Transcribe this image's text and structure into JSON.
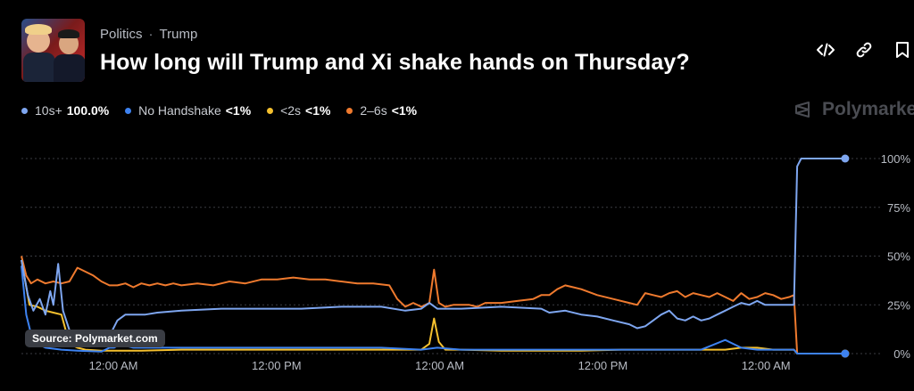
{
  "header": {
    "category": "Politics",
    "separator": "·",
    "subcategory": "Trump",
    "title": "How long will Trump and Xi shake hands on Thursday?"
  },
  "toolbar": {
    "embed_icon": "code-icon",
    "link_icon": "link-icon",
    "bookmark_icon": "bookmark-icon"
  },
  "brand": "Polymarket",
  "source_label": "Source: Polymarket.com",
  "legend": [
    {
      "label": "10s+",
      "value": "100.0%",
      "color": "#7ea6f0"
    },
    {
      "label": "No Handshake",
      "value": "<1%",
      "color": "#3d82f0"
    },
    {
      "label": "<2s",
      "value": "<1%",
      "color": "#f5c02e"
    },
    {
      "label": "2–6s",
      "value": "<1%",
      "color": "#ef7a2e"
    }
  ],
  "chart_data": {
    "type": "line",
    "x_range": [
      0,
      100
    ],
    "ylim": [
      0,
      100
    ],
    "y_ticks": [
      "100%",
      "75%",
      "50%",
      "25%",
      "0%"
    ],
    "y_tick_values": [
      100,
      75,
      50,
      25,
      0
    ],
    "x_ticks": [
      {
        "label": "12:00 AM",
        "x": 11.5
      },
      {
        "label": "12:00 PM",
        "x": 31.9
      },
      {
        "label": "12:00 AM",
        "x": 52.3
      },
      {
        "label": "12:00 PM",
        "x": 72.7
      },
      {
        "label": "12:00 AM",
        "x": 93.1
      }
    ],
    "grid": true,
    "series": [
      {
        "name": "10s+",
        "color": "#7ea6f0",
        "points": [
          [
            0,
            48
          ],
          [
            0.8,
            30
          ],
          [
            1.5,
            22
          ],
          [
            2.3,
            28
          ],
          [
            3,
            20
          ],
          [
            3.6,
            32
          ],
          [
            4,
            25
          ],
          [
            4.6,
            46
          ],
          [
            5.2,
            22
          ],
          [
            6,
            12
          ],
          [
            7.5,
            8
          ],
          [
            8.8,
            8
          ],
          [
            10,
            7
          ],
          [
            11,
            9
          ],
          [
            12,
            17
          ],
          [
            13,
            20
          ],
          [
            14,
            20
          ],
          [
            15.5,
            20
          ],
          [
            17,
            21
          ],
          [
            20,
            22
          ],
          [
            25,
            23
          ],
          [
            30,
            23
          ],
          [
            35,
            23
          ],
          [
            40,
            24
          ],
          [
            45,
            24
          ],
          [
            48,
            22
          ],
          [
            50,
            23
          ],
          [
            51,
            26
          ],
          [
            52,
            23
          ],
          [
            55,
            23
          ],
          [
            60,
            24
          ],
          [
            65,
            23
          ],
          [
            66,
            21
          ],
          [
            68,
            22
          ],
          [
            70,
            20
          ],
          [
            72,
            19
          ],
          [
            74,
            17
          ],
          [
            76,
            15
          ],
          [
            77,
            13
          ],
          [
            78,
            14
          ],
          [
            79,
            17
          ],
          [
            80,
            20
          ],
          [
            81,
            22
          ],
          [
            82,
            18
          ],
          [
            83,
            17
          ],
          [
            84,
            19
          ],
          [
            85,
            17
          ],
          [
            86,
            18
          ],
          [
            87,
            20
          ],
          [
            88,
            22
          ],
          [
            89,
            24
          ],
          [
            90,
            26
          ],
          [
            91,
            25
          ],
          [
            92,
            27
          ],
          [
            93,
            25
          ],
          [
            94,
            25
          ],
          [
            95,
            25
          ],
          [
            96,
            25
          ],
          [
            96.6,
            25
          ],
          [
            97,
            96
          ],
          [
            97.5,
            100
          ],
          [
            98,
            100
          ],
          [
            100,
            100
          ],
          [
            103,
            100
          ]
        ]
      },
      {
        "name": "No Handshake",
        "color": "#3d82f0",
        "points": [
          [
            0,
            45
          ],
          [
            0.6,
            20
          ],
          [
            1.2,
            10
          ],
          [
            2,
            5
          ],
          [
            3,
            3
          ],
          [
            5,
            2
          ],
          [
            7,
            1.5
          ],
          [
            10,
            1
          ],
          [
            11,
            3
          ],
          [
            11.6,
            3
          ],
          [
            12,
            4
          ],
          [
            13,
            4
          ],
          [
            14,
            3
          ],
          [
            15.5,
            3
          ],
          [
            17,
            3
          ],
          [
            20,
            3
          ],
          [
            25,
            3
          ],
          [
            30,
            3
          ],
          [
            35,
            3
          ],
          [
            40,
            3
          ],
          [
            45,
            3
          ],
          [
            50,
            2
          ],
          [
            52,
            3
          ],
          [
            55,
            2
          ],
          [
            60,
            2
          ],
          [
            65,
            2
          ],
          [
            70,
            2
          ],
          [
            75,
            2
          ],
          [
            80,
            2
          ],
          [
            85,
            2
          ],
          [
            88,
            7
          ],
          [
            90,
            3
          ],
          [
            92,
            2
          ],
          [
            94,
            2
          ],
          [
            96,
            2
          ],
          [
            96.6,
            2
          ],
          [
            97,
            0
          ],
          [
            100,
            0
          ],
          [
            103,
            0
          ]
        ]
      },
      {
        "name": "<2s",
        "color": "#f5c02e",
        "points": [
          [
            0,
            48
          ],
          [
            1,
            25
          ],
          [
            2,
            24
          ],
          [
            3,
            22
          ],
          [
            4,
            21
          ],
          [
            5,
            20
          ],
          [
            6,
            5
          ],
          [
            7,
            3
          ],
          [
            8,
            2
          ],
          [
            10,
            1.5
          ],
          [
            15,
            1.5
          ],
          [
            20,
            2
          ],
          [
            25,
            2
          ],
          [
            30,
            2
          ],
          [
            35,
            2
          ],
          [
            40,
            2
          ],
          [
            45,
            2
          ],
          [
            50,
            2
          ],
          [
            51,
            5
          ],
          [
            51.6,
            18
          ],
          [
            52.2,
            6
          ],
          [
            53,
            2
          ],
          [
            55,
            2
          ],
          [
            60,
            1.5
          ],
          [
            65,
            1.5
          ],
          [
            70,
            1.5
          ],
          [
            75,
            2
          ],
          [
            80,
            2
          ],
          [
            85,
            2
          ],
          [
            88,
            2
          ],
          [
            90,
            3
          ],
          [
            92,
            3
          ],
          [
            94,
            2
          ],
          [
            96,
            2
          ],
          [
            96.6,
            2
          ],
          [
            97,
            0
          ],
          [
            100,
            0
          ],
          [
            103,
            0
          ]
        ]
      },
      {
        "name": "2–6s",
        "color": "#ef7a2e",
        "points": [
          [
            0,
            50
          ],
          [
            0.6,
            40
          ],
          [
            1.2,
            36
          ],
          [
            2,
            38
          ],
          [
            3,
            36
          ],
          [
            4,
            37
          ],
          [
            5,
            36
          ],
          [
            6,
            37
          ],
          [
            7,
            44
          ],
          [
            8,
            42
          ],
          [
            9,
            40
          ],
          [
            10,
            37
          ],
          [
            11,
            35
          ],
          [
            12,
            35
          ],
          [
            13,
            36
          ],
          [
            14,
            34
          ],
          [
            15,
            36
          ],
          [
            16,
            35
          ],
          [
            17,
            36
          ],
          [
            18,
            35
          ],
          [
            19,
            36
          ],
          [
            20,
            35
          ],
          [
            22,
            36
          ],
          [
            24,
            35
          ],
          [
            26,
            37
          ],
          [
            28,
            36
          ],
          [
            30,
            38
          ],
          [
            32,
            38
          ],
          [
            34,
            39
          ],
          [
            36,
            38
          ],
          [
            38,
            38
          ],
          [
            40,
            37
          ],
          [
            42,
            36
          ],
          [
            44,
            36
          ],
          [
            46,
            35
          ],
          [
            47,
            28
          ],
          [
            48,
            24
          ],
          [
            49,
            26
          ],
          [
            50,
            24
          ],
          [
            51,
            26
          ],
          [
            51.6,
            43
          ],
          [
            52.2,
            26
          ],
          [
            53,
            24
          ],
          [
            54,
            25
          ],
          [
            55,
            25
          ],
          [
            56,
            25
          ],
          [
            57,
            24
          ],
          [
            58,
            26
          ],
          [
            60,
            26
          ],
          [
            62,
            27
          ],
          [
            64,
            28
          ],
          [
            65,
            30
          ],
          [
            66,
            30
          ],
          [
            67,
            33
          ],
          [
            68,
            35
          ],
          [
            69,
            34
          ],
          [
            70,
            33
          ],
          [
            72,
            30
          ],
          [
            74,
            28
          ],
          [
            76,
            26
          ],
          [
            77,
            25
          ],
          [
            78,
            31
          ],
          [
            79,
            30
          ],
          [
            80,
            29
          ],
          [
            81,
            31
          ],
          [
            82,
            32
          ],
          [
            83,
            29
          ],
          [
            84,
            31
          ],
          [
            85,
            30
          ],
          [
            86,
            29
          ],
          [
            87,
            31
          ],
          [
            88,
            29
          ],
          [
            89,
            27
          ],
          [
            90,
            31
          ],
          [
            91,
            28
          ],
          [
            92,
            29
          ],
          [
            93,
            31
          ],
          [
            94,
            30
          ],
          [
            95,
            28
          ],
          [
            96,
            29
          ],
          [
            96.6,
            30
          ],
          [
            97,
            0
          ],
          [
            100,
            0
          ],
          [
            103,
            0
          ]
        ]
      }
    ]
  }
}
